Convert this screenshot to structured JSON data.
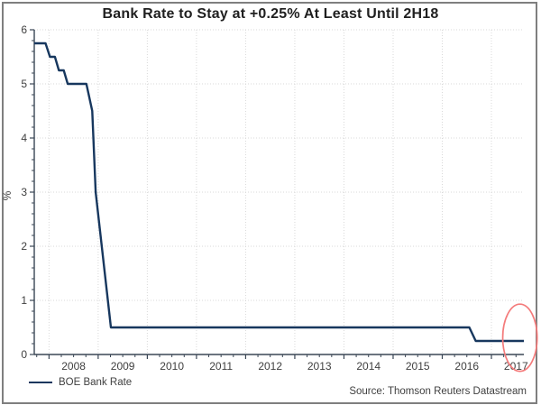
{
  "chart_data": {
    "type": "line",
    "title": "Bank Rate to Stay at +0.25% At Least Until 2H18",
    "ylabel": "%",
    "ylim": [
      0,
      6
    ],
    "yticks": [
      0,
      1,
      2,
      3,
      4,
      5,
      6
    ],
    "y_minor_step": 0.2,
    "xlim": [
      2007.7,
      2017.66
    ],
    "x_minor_step": 0.25,
    "year_gridlines": [
      2008,
      2009,
      2010,
      2011,
      2012,
      2013,
      2014,
      2015,
      2016,
      2017
    ],
    "xtick_labels": [
      "2008",
      "2009",
      "2010",
      "2011",
      "2012",
      "2013",
      "2014",
      "2015",
      "2016",
      "2017"
    ],
    "grid": true,
    "legend_position": "bottom-left",
    "series": [
      {
        "name": "BOE Bank Rate",
        "color": "#17375e",
        "points": [
          [
            2007.7,
            5.75
          ],
          [
            2007.93,
            5.75
          ],
          [
            2008.02,
            5.5
          ],
          [
            2008.12,
            5.5
          ],
          [
            2008.2,
            5.25
          ],
          [
            2008.3,
            5.25
          ],
          [
            2008.38,
            5.0
          ],
          [
            2008.76,
            5.0
          ],
          [
            2008.88,
            4.5
          ],
          [
            2008.95,
            3.0
          ],
          [
            2009.26,
            0.5
          ],
          [
            2016.55,
            0.5
          ],
          [
            2016.68,
            0.25
          ],
          [
            2017.66,
            0.25
          ]
        ]
      }
    ],
    "annotation": {
      "type": "ellipse",
      "purpose": "highlights latest +0.25% rate at end of 2017",
      "center": [
        2017.58,
        0.31
      ],
      "radius_x_years": 0.35,
      "radius_y_units": 0.62,
      "color": "#f47b7b"
    }
  },
  "legend": {
    "label": "BOE Bank Rate"
  },
  "source_note": "Source: Thomson Reuters Datastream",
  "colors": {
    "line": "#17375e",
    "grid": "#d9d9d9",
    "axis": "#3a4655",
    "tick_text": "#404040",
    "title_text": "#1f1f1f",
    "frame_border": "#7f7f7f",
    "annotation": "#f47b7b",
    "source_text": "#404040"
  }
}
